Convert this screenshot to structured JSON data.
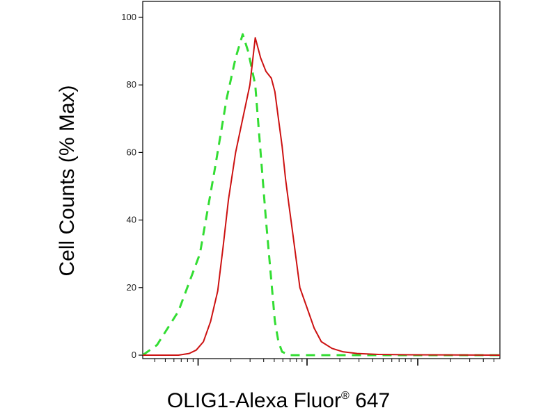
{
  "chart_data": {
    "type": "line",
    "title": "",
    "ylabel": "Cell Counts (% Max)",
    "xlabel_text": "OLIG1-Alexa Fluor",
    "xlabel_sup": "®",
    "xlabel_suffix": " 647",
    "ylim": [
      0,
      100
    ],
    "y_ticks": [
      0,
      20,
      40,
      60,
      80,
      100
    ],
    "x_scale": "log",
    "x_ticks_labeled": false,
    "grid": false,
    "series": [
      {
        "color": "#33dd33",
        "style": "dashed",
        "x": [
          0,
          0.04,
          0.1,
          0.16,
          0.2,
          0.235,
          0.26,
          0.28,
          0.295,
          0.305,
          0.315,
          0.33,
          0.345,
          0.36,
          0.37,
          0.38,
          0.39,
          0.41,
          0.43,
          0.46,
          0.5,
          1.0
        ],
        "y": [
          0,
          3,
          13,
          30,
          54,
          76,
          88,
          95,
          90,
          85,
          80,
          60,
          40,
          22,
          10,
          4,
          1,
          0,
          0,
          0,
          0,
          0
        ]
      },
      {
        "color": "#cc1111",
        "style": "solid",
        "x": [
          0,
          0.1,
          0.13,
          0.15,
          0.17,
          0.19,
          0.21,
          0.225,
          0.24,
          0.26,
          0.28,
          0.3,
          0.315,
          0.33,
          0.345,
          0.36,
          0.37,
          0.38,
          0.39,
          0.4,
          0.41,
          0.42,
          0.43,
          0.44,
          0.46,
          0.48,
          0.5,
          0.53,
          0.56,
          0.6,
          0.66,
          0.75,
          1.0
        ],
        "y": [
          0,
          0,
          0.5,
          1.5,
          4,
          10,
          19,
          32,
          46,
          60,
          70,
          80,
          94,
          88,
          84,
          82,
          78,
          70,
          62,
          52,
          44,
          36,
          28,
          20,
          14,
          8,
          4,
          2,
          1,
          0.5,
          0.2,
          0.1,
          0
        ]
      }
    ]
  }
}
